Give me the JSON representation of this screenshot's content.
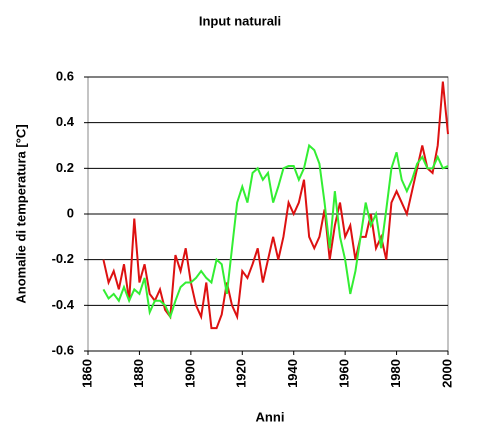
{
  "chart_data": {
    "type": "line",
    "title": "Input naturali",
    "xlabel": "Anni",
    "ylabel": "Anomalie di temperatura [°C]",
    "x": [
      1866,
      1868,
      1870,
      1872,
      1874,
      1876,
      1878,
      1880,
      1882,
      1884,
      1886,
      1888,
      1890,
      1892,
      1894,
      1896,
      1898,
      1900,
      1902,
      1904,
      1906,
      1908,
      1910,
      1912,
      1914,
      1916,
      1918,
      1920,
      1922,
      1924,
      1926,
      1928,
      1930,
      1932,
      1934,
      1936,
      1938,
      1940,
      1942,
      1944,
      1946,
      1948,
      1950,
      1952,
      1954,
      1956,
      1958,
      1960,
      1962,
      1964,
      1966,
      1968,
      1970,
      1972,
      1974,
      1976,
      1978,
      1980,
      1982,
      1984,
      1986,
      1988,
      1990,
      1992,
      1994,
      1996,
      1998,
      2000
    ],
    "series": [
      {
        "color": "#dd1111",
        "values": [
          -0.2,
          -0.3,
          -0.25,
          -0.33,
          -0.22,
          -0.38,
          -0.02,
          -0.3,
          -0.22,
          -0.35,
          -0.38,
          -0.33,
          -0.42,
          -0.45,
          -0.18,
          -0.25,
          -0.15,
          -0.3,
          -0.4,
          -0.45,
          -0.3,
          -0.5,
          -0.5,
          -0.44,
          -0.3,
          -0.4,
          -0.45,
          -0.25,
          -0.28,
          -0.22,
          -0.15,
          -0.3,
          -0.2,
          -0.1,
          -0.2,
          -0.1,
          0.05,
          0.0,
          0.05,
          0.15,
          -0.1,
          -0.15,
          -0.1,
          0.02,
          -0.2,
          -0.05,
          0.05,
          -0.1,
          -0.05,
          -0.2,
          -0.1,
          -0.1,
          0.0,
          -0.15,
          -0.1,
          -0.2,
          0.05,
          0.1,
          0.05,
          0.0,
          0.1,
          0.2,
          0.3,
          0.2,
          0.18,
          0.3,
          0.58,
          0.35
        ]
      },
      {
        "color": "#33ee33",
        "values": [
          -0.33,
          -0.37,
          -0.35,
          -0.38,
          -0.32,
          -0.38,
          -0.33,
          -0.35,
          -0.28,
          -0.43,
          -0.38,
          -0.38,
          -0.4,
          -0.45,
          -0.38,
          -0.32,
          -0.3,
          -0.3,
          -0.28,
          -0.25,
          -0.28,
          -0.3,
          -0.2,
          -0.22,
          -0.35,
          -0.15,
          0.05,
          0.12,
          0.05,
          0.18,
          0.2,
          0.15,
          0.18,
          0.05,
          0.12,
          0.2,
          0.21,
          0.21,
          0.15,
          0.2,
          0.3,
          0.28,
          0.22,
          0.05,
          -0.15,
          0.1,
          -0.1,
          -0.2,
          -0.35,
          -0.25,
          -0.1,
          0.05,
          -0.05,
          0.0,
          -0.15,
          0.02,
          0.2,
          0.27,
          0.15,
          0.1,
          0.15,
          0.22,
          0.25,
          0.2,
          0.2,
          0.25,
          0.2,
          0.21
        ]
      }
    ],
    "xlim": [
      1860,
      2000
    ],
    "xticks": [
      1860,
      1880,
      1900,
      1920,
      1940,
      1960,
      1980,
      2000
    ],
    "ylim": [
      -0.6,
      0.6
    ],
    "yticks": [
      0.6,
      0.4,
      0.2,
      0,
      -0.2,
      -0.4,
      -0.6
    ],
    "grid": true
  }
}
